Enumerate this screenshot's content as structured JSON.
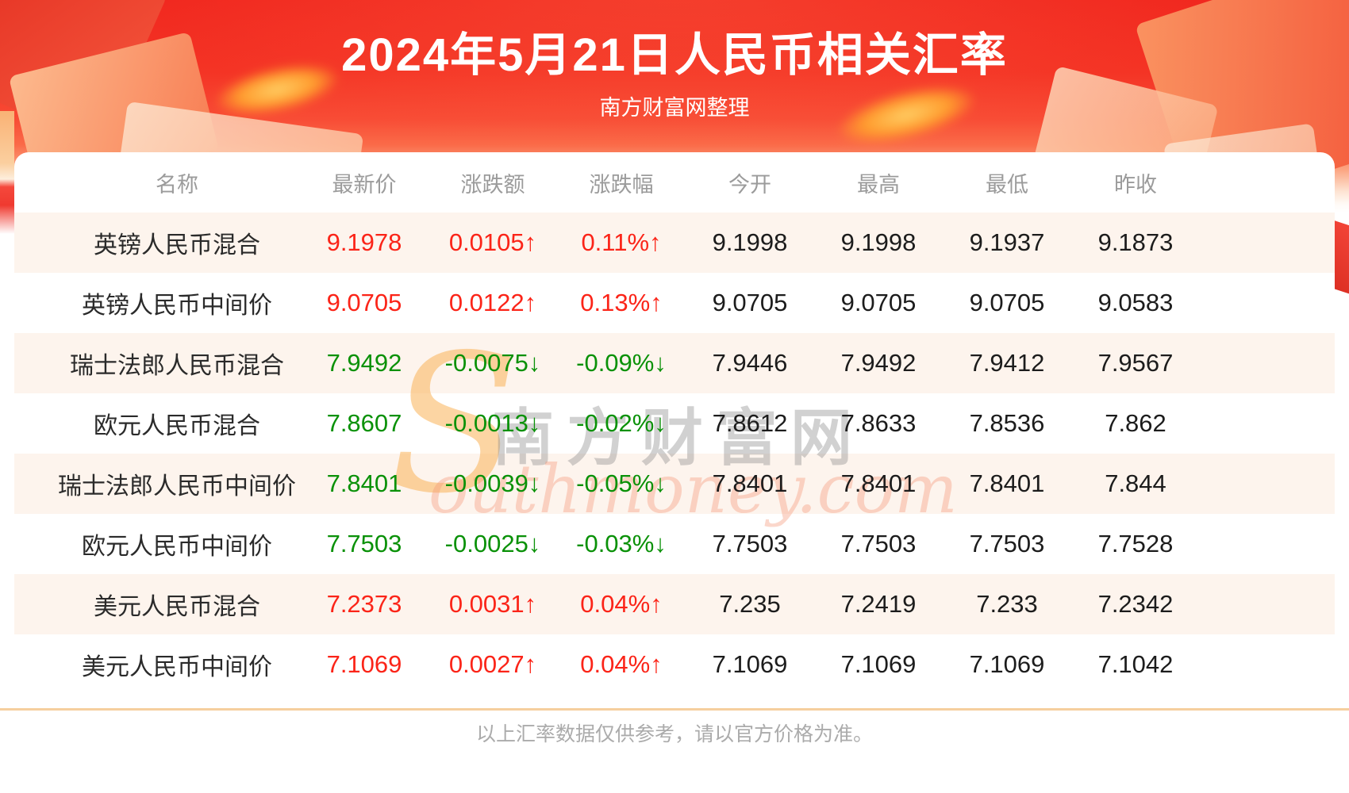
{
  "header": {
    "title": "2024年5月21日人民币相关汇率",
    "subtitle": "南方财富网整理"
  },
  "table": {
    "columns": [
      "名称",
      "最新价",
      "涨跌额",
      "涨跌幅",
      "今开",
      "最高",
      "最低",
      "昨收"
    ],
    "rows": [
      {
        "name": "英镑人民币混合",
        "latest": "9.1978",
        "change": "0.0105↑",
        "change_pct": "0.11%↑",
        "open": "9.1998",
        "high": "9.1998",
        "low": "9.1937",
        "prev_close": "9.1873",
        "trend": "up"
      },
      {
        "name": "英镑人民币中间价",
        "latest": "9.0705",
        "change": "0.0122↑",
        "change_pct": "0.13%↑",
        "open": "9.0705",
        "high": "9.0705",
        "low": "9.0705",
        "prev_close": "9.0583",
        "trend": "up"
      },
      {
        "name": "瑞士法郎人民币混合",
        "latest": "7.9492",
        "change": "-0.0075↓",
        "change_pct": "-0.09%↓",
        "open": "7.9446",
        "high": "7.9492",
        "low": "7.9412",
        "prev_close": "7.9567",
        "trend": "down"
      },
      {
        "name": "欧元人民币混合",
        "latest": "7.8607",
        "change": "-0.0013↓",
        "change_pct": "-0.02%↓",
        "open": "7.8612",
        "high": "7.8633",
        "low": "7.8536",
        "prev_close": "7.862",
        "trend": "down"
      },
      {
        "name": "瑞士法郎人民币中间价",
        "latest": "7.8401",
        "change": "-0.0039↓",
        "change_pct": "-0.05%↓",
        "open": "7.8401",
        "high": "7.8401",
        "low": "7.8401",
        "prev_close": "7.844",
        "trend": "down"
      },
      {
        "name": "欧元人民币中间价",
        "latest": "7.7503",
        "change": "-0.0025↓",
        "change_pct": "-0.03%↓",
        "open": "7.7503",
        "high": "7.7503",
        "low": "7.7503",
        "prev_close": "7.7528",
        "trend": "down"
      },
      {
        "name": "美元人民币混合",
        "latest": "7.2373",
        "change": "0.0031↑",
        "change_pct": "0.04%↑",
        "open": "7.235",
        "high": "7.2419",
        "low": "7.233",
        "prev_close": "7.2342",
        "trend": "up"
      },
      {
        "name": "美元人民币中间价",
        "latest": "7.1069",
        "change": "0.0027↑",
        "change_pct": "0.04%↑",
        "open": "7.1069",
        "high": "7.1069",
        "low": "7.1069",
        "prev_close": "7.1042",
        "trend": "up"
      }
    ]
  },
  "watermark": {
    "s_glyph": "S",
    "cn_text": "南方财富网",
    "en_text": "outhmoney.com"
  },
  "footer": {
    "disclaimer": "以上汇率数据仅供参考，请以官方价格为准。"
  },
  "colors": {
    "up": "#fb2418",
    "down": "#0a9108",
    "row_alt": "#fdf4ed",
    "divider": "#f6cf9e",
    "header_red_top": "#f1281f"
  }
}
